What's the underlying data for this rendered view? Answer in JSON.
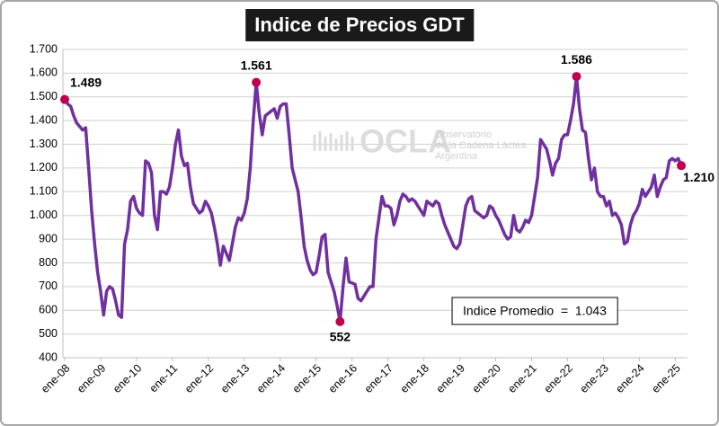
{
  "chart_data": {
    "type": "line",
    "title": "Indice de Precios GDT",
    "categories": [
      "ene-08",
      null,
      null,
      null,
      null,
      null,
      null,
      null,
      null,
      null,
      null,
      null,
      "ene-09",
      null,
      null,
      null,
      null,
      null,
      null,
      null,
      null,
      null,
      null,
      null,
      "ene-10",
      null,
      null,
      null,
      null,
      null,
      null,
      null,
      null,
      null,
      null,
      null,
      "ene-11",
      null,
      null,
      null,
      null,
      null,
      null,
      null,
      null,
      null,
      null,
      null,
      "ene-12",
      null,
      null,
      null,
      null,
      null,
      null,
      null,
      null,
      null,
      null,
      null,
      "ene-13",
      null,
      null,
      null,
      null,
      null,
      null,
      null,
      null,
      null,
      null,
      null,
      "ene-14",
      null,
      null,
      null,
      null,
      null,
      null,
      null,
      null,
      null,
      null,
      null,
      "ene-15",
      null,
      null,
      null,
      null,
      null,
      null,
      null,
      null,
      null,
      null,
      null,
      "ene-16",
      null,
      null,
      null,
      null,
      null,
      null,
      null,
      null,
      null,
      null,
      null,
      "ene-17",
      null,
      null,
      null,
      null,
      null,
      null,
      null,
      null,
      null,
      null,
      null,
      "ene-18",
      null,
      null,
      null,
      null,
      null,
      null,
      null,
      null,
      null,
      null,
      null,
      "ene-19",
      null,
      null,
      null,
      null,
      null,
      null,
      null,
      null,
      null,
      null,
      null,
      "ene-20",
      null,
      null,
      null,
      null,
      null,
      null,
      null,
      null,
      null,
      null,
      null,
      "ene-21",
      null,
      null,
      null,
      null,
      null,
      null,
      null,
      null,
      null,
      null,
      null,
      "ene-22",
      null,
      null,
      null,
      null,
      null,
      null,
      null,
      null,
      null,
      null,
      null,
      "ene-23",
      null,
      null,
      null,
      null,
      null,
      null,
      null,
      null,
      null,
      null,
      null,
      "ene-24",
      null,
      null,
      null,
      null,
      null,
      null,
      null,
      null,
      null,
      null,
      null,
      "ene-25",
      null,
      null
    ],
    "values": [
      1489,
      1470,
      1460,
      1420,
      1390,
      1375,
      1360,
      1370,
      1200,
      1020,
      880,
      760,
      680,
      580,
      680,
      700,
      690,
      640,
      580,
      570,
      880,
      940,
      1060,
      1080,
      1030,
      1010,
      1000,
      1230,
      1220,
      1180,
      1000,
      940,
      1100,
      1100,
      1090,
      1120,
      1200,
      1300,
      1360,
      1250,
      1210,
      1220,
      1120,
      1050,
      1030,
      1010,
      1020,
      1060,
      1040,
      1010,
      950,
      880,
      790,
      870,
      840,
      810,
      880,
      950,
      990,
      980,
      1010,
      1070,
      1200,
      1400,
      1561,
      1430,
      1340,
      1420,
      1430,
      1440,
      1450,
      1410,
      1460,
      1470,
      1470,
      1340,
      1200,
      1150,
      1100,
      990,
      870,
      810,
      770,
      750,
      760,
      830,
      910,
      920,
      760,
      720,
      680,
      620,
      552,
      700,
      820,
      720,
      715,
      710,
      650,
      640,
      660,
      680,
      700,
      700,
      900,
      990,
      1080,
      1040,
      1040,
      1030,
      960,
      1000,
      1060,
      1090,
      1080,
      1060,
      1070,
      1060,
      1040,
      1020,
      1000,
      1060,
      1050,
      1040,
      1060,
      1050,
      1000,
      960,
      930,
      900,
      870,
      860,
      880,
      960,
      1040,
      1070,
      1080,
      1020,
      1010,
      1000,
      990,
      1000,
      1040,
      1030,
      1000,
      980,
      950,
      920,
      900,
      910,
      1000,
      940,
      930,
      950,
      980,
      970,
      1000,
      1080,
      1160,
      1320,
      1300,
      1280,
      1230,
      1170,
      1220,
      1240,
      1320,
      1340,
      1340,
      1400,
      1470,
      1586,
      1450,
      1360,
      1350,
      1240,
      1150,
      1200,
      1100,
      1080,
      1080,
      1040,
      1060,
      1000,
      1010,
      990,
      960,
      880,
      890,
      960,
      1000,
      1020,
      1050,
      1110,
      1080,
      1100,
      1120,
      1170,
      1080,
      1120,
      1150,
      1160,
      1230,
      1240,
      1230,
      1240,
      1210
    ],
    "value_labels": [
      "1.489",
      null,
      null,
      null,
      null,
      null,
      null,
      null,
      null,
      null,
      null,
      null,
      null,
      null,
      null,
      null,
      null,
      null,
      null,
      null,
      null,
      null,
      null,
      null,
      null,
      null,
      null,
      null,
      null,
      null,
      null,
      null,
      null,
      null,
      null,
      null,
      null,
      null,
      null,
      null,
      null,
      null,
      null,
      null,
      null,
      null,
      null,
      null,
      null,
      null,
      null,
      null,
      null,
      null,
      null,
      null,
      null,
      null,
      null,
      null,
      null,
      null,
      null,
      null,
      "1.561",
      null,
      null,
      null,
      null,
      null,
      null,
      null,
      null,
      null,
      null,
      null,
      null,
      null,
      null,
      null,
      null,
      null,
      null,
      null,
      null,
      null,
      null,
      null,
      null,
      null,
      null,
      null,
      "552",
      null,
      null,
      null,
      null,
      null,
      null,
      null,
      null,
      null,
      null,
      null,
      null,
      null,
      null,
      null,
      null,
      null,
      null,
      null,
      null,
      null,
      null,
      null,
      null,
      null,
      null,
      null,
      null,
      null,
      null,
      null,
      null,
      null,
      null,
      null,
      null,
      null,
      null,
      null,
      null,
      null,
      null,
      null,
      null,
      null,
      null,
      null,
      null,
      null,
      null,
      null,
      null,
      null,
      null,
      null,
      null,
      null,
      null,
      null,
      null,
      null,
      null,
      null,
      null,
      null,
      null,
      null,
      null,
      null,
      null,
      null,
      null,
      null,
      null,
      null,
      null,
      null,
      null,
      "1.586",
      null,
      null,
      null,
      null,
      null,
      null,
      null,
      null,
      null,
      null,
      null,
      null,
      null,
      null,
      null,
      null,
      null,
      null,
      null,
      null,
      null,
      null,
      null,
      null,
      null,
      null,
      null,
      null,
      null,
      null,
      null,
      null,
      null,
      null,
      "1.210"
    ],
    "color": "#7030a0",
    "marker_color": "#c0004e",
    "ylim": [
      400,
      1700
    ],
    "yticks": [
      400,
      500,
      600,
      700,
      800,
      900,
      {
        "value": 1000,
        "label": "1.000"
      },
      {
        "value": 1100,
        "label": "1.100"
      },
      {
        "value": 1200,
        "label": "1.200"
      },
      {
        "value": 1300,
        "label": "1.300"
      },
      {
        "value": 1400,
        "label": "1.400"
      },
      {
        "value": 1500,
        "label": "1.500"
      },
      {
        "value": 1600,
        "label": "1.600"
      },
      {
        "value": 1700,
        "label": "1.700"
      }
    ],
    "grid": true,
    "average_box": "Indice Promedio  =  1.043",
    "watermark": {
      "name": "OCLA",
      "lines": [
        "Observatorio",
        "de la Cadena Láctea",
        "Argentina"
      ]
    }
  }
}
